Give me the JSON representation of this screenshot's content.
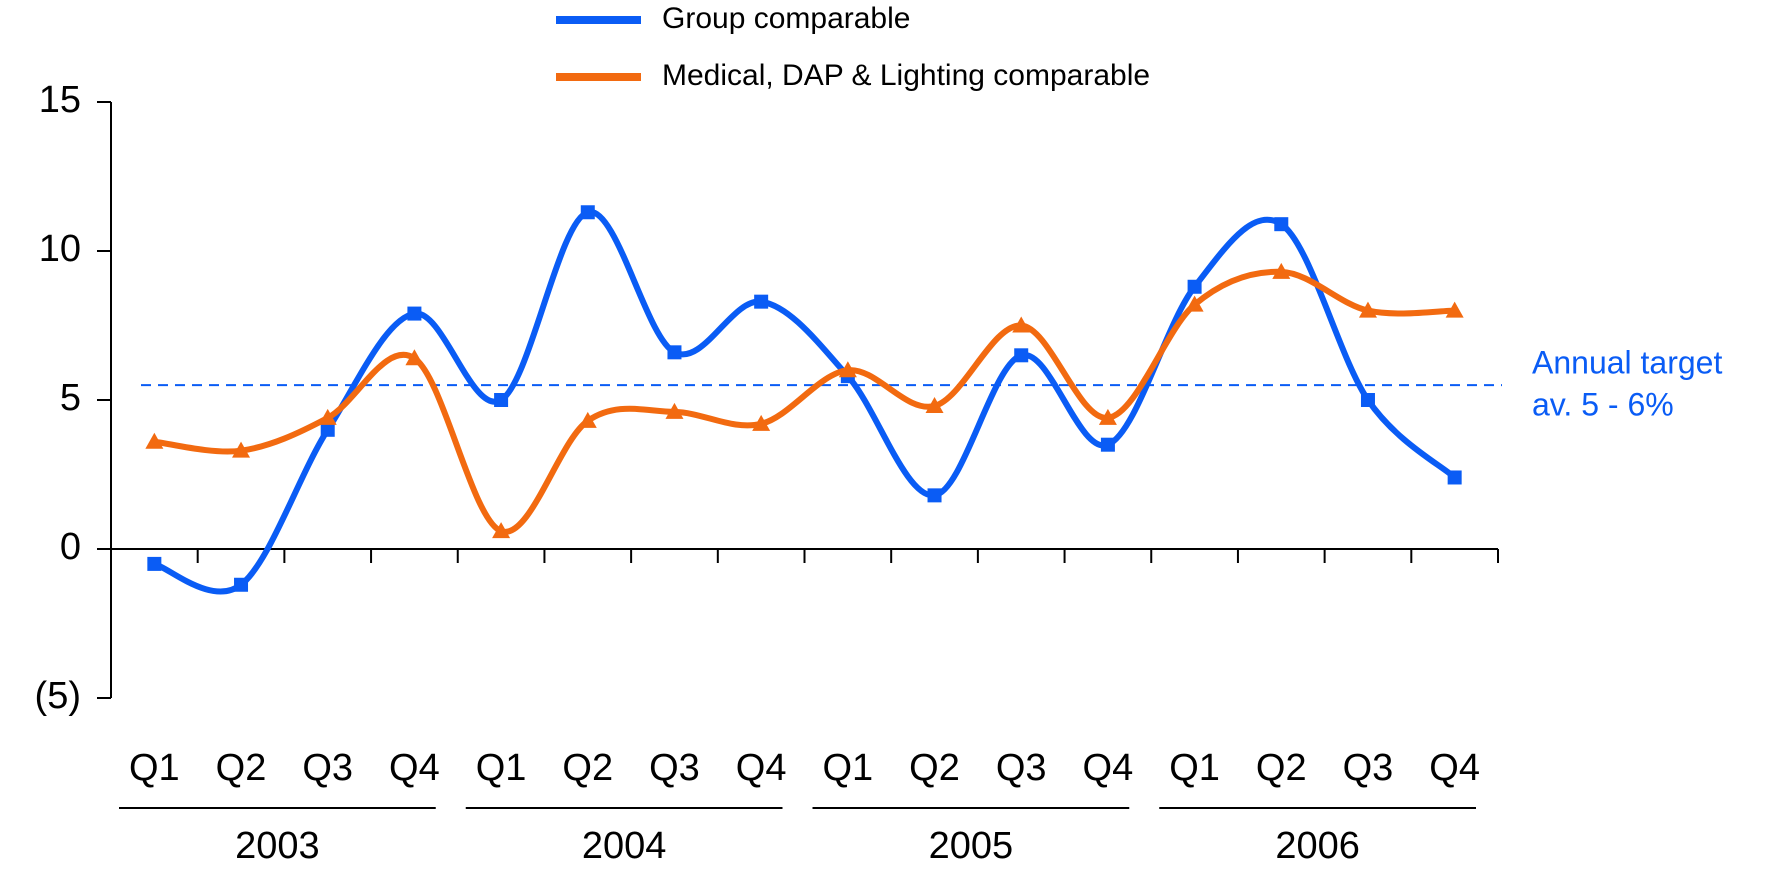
{
  "chart_data": {
    "type": "line",
    "categories": [
      "Q1",
      "Q2",
      "Q3",
      "Q4",
      "Q1",
      "Q2",
      "Q3",
      "Q4",
      "Q1",
      "Q2",
      "Q3",
      "Q4",
      "Q1",
      "Q2",
      "Q3",
      "Q4"
    ],
    "years": [
      "2003",
      "2004",
      "2005",
      "2006"
    ],
    "series": [
      {
        "name": "Group comparable",
        "color": "#0a5cf5",
        "marker": "square",
        "values": [
          -0.5,
          -1.2,
          4.0,
          7.9,
          5.0,
          11.3,
          6.6,
          8.3,
          5.8,
          1.8,
          6.5,
          3.5,
          8.8,
          10.9,
          5.0,
          2.4
        ]
      },
      {
        "name": "Medical, DAP & Lighting comparable",
        "color": "#f26a10",
        "marker": "triangle",
        "values": [
          3.6,
          3.3,
          4.4,
          6.4,
          0.6,
          4.3,
          4.6,
          4.2,
          6.0,
          4.8,
          7.5,
          4.4,
          8.2,
          9.3,
          8.0,
          8.0
        ]
      }
    ],
    "reference_line": {
      "value": 5.5,
      "color": "#0a5cf5",
      "label": [
        "Annual target",
        "av. 5 - 6%"
      ]
    },
    "ylim": [
      -5,
      15
    ],
    "yticks": [
      15,
      10,
      5,
      0,
      {
        "value": -5,
        "label": "(5)"
      }
    ]
  }
}
